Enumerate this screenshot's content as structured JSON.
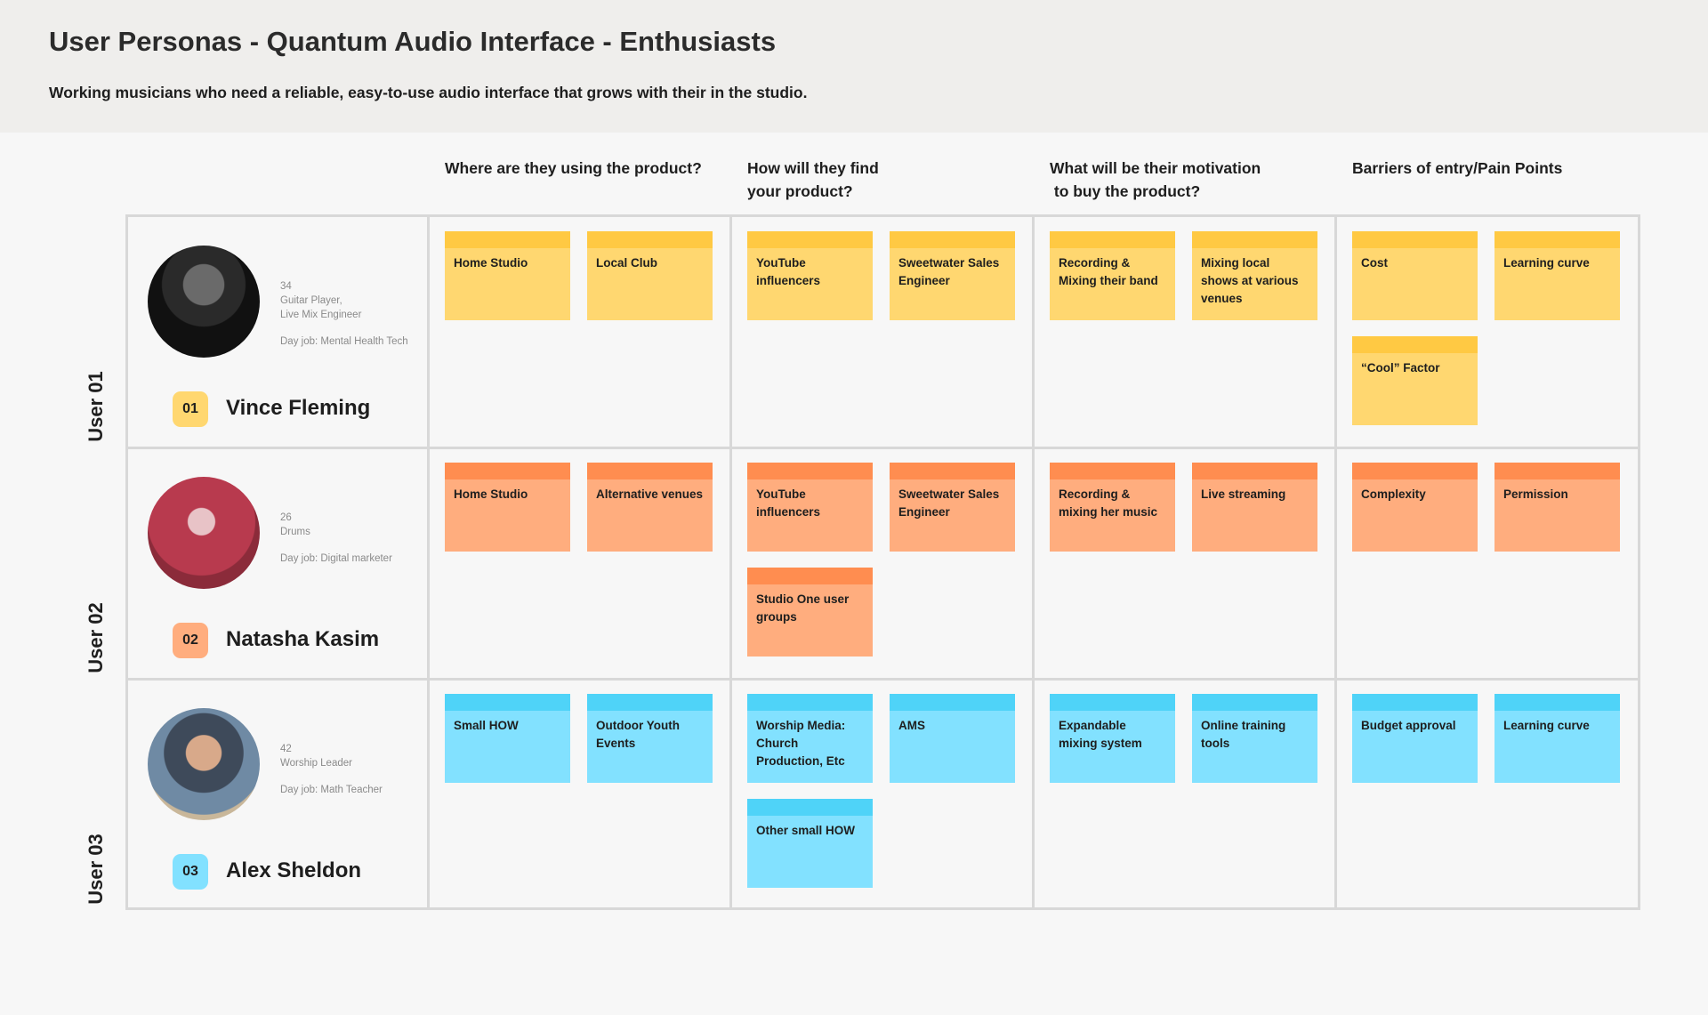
{
  "page": {
    "title": "User Personas - Quantum Audio Interface - Enthusiasts",
    "subtitle": "Working musicians who need a reliable, easy-to-use audio interface that grows with their in the studio."
  },
  "columns": [
    "Where are they using the product?",
    "How will they find\nyour product?",
    "What will be their motivation\n to buy the product?",
    "Barriers of entry/Pain Points"
  ],
  "colors": {
    "yellow_note": "#ffd770",
    "yellow_strip": "#ffc943",
    "orange_note": "#ffad7e",
    "orange_strip": "#ff8d50",
    "blue_note": "#82e1ff",
    "blue_strip": "#4fd3f8",
    "grid_line": "#d8d8d8"
  },
  "users": [
    {
      "row_label": "User 01",
      "number": "01",
      "name": "Vince Fleming",
      "age": "34",
      "role": "Guitar Player,\nLive Mix Engineer",
      "day_job": "Day job: Mental Health Tech",
      "avatar_icon": "person-photo-icon",
      "color": "yellow",
      "notes": [
        [
          "Home Studio",
          "Local Club"
        ],
        [
          "YouTube influencers",
          "Sweetwater Sales Engineer"
        ],
        [
          "Recording & Mixing their band",
          "Mixing local shows at various venues"
        ],
        [
          "Cost",
          "Learning curve",
          "“Cool” Factor"
        ]
      ]
    },
    {
      "row_label": "User 02",
      "number": "02",
      "name": "Natasha Kasim",
      "age": "26",
      "role": "Drums",
      "day_job": "Day job: Digital marketer",
      "avatar_icon": "person-photo-icon",
      "color": "orange",
      "notes": [
        [
          "Home Studio",
          "Alternative venues"
        ],
        [
          "YouTube influencers",
          "Sweetwater Sales Engineer",
          "Studio One user groups"
        ],
        [
          "Recording & mixing her music",
          "Live streaming"
        ],
        [
          "Complexity",
          "Permission"
        ]
      ]
    },
    {
      "row_label": "User 03",
      "number": "03",
      "name": "Alex Sheldon",
      "age": "42",
      "role": "Worship Leader",
      "day_job": "Day job: Math Teacher",
      "avatar_icon": "person-photo-icon",
      "color": "blue",
      "notes": [
        [
          "Small HOW",
          "Outdoor Youth Events"
        ],
        [
          "Worship Media: Church Production, Etc",
          "AMS",
          "Other small HOW"
        ],
        [
          "Expandable mixing system",
          "Online training tools"
        ],
        [
          "Budget approval",
          "Learning curve"
        ]
      ]
    }
  ]
}
